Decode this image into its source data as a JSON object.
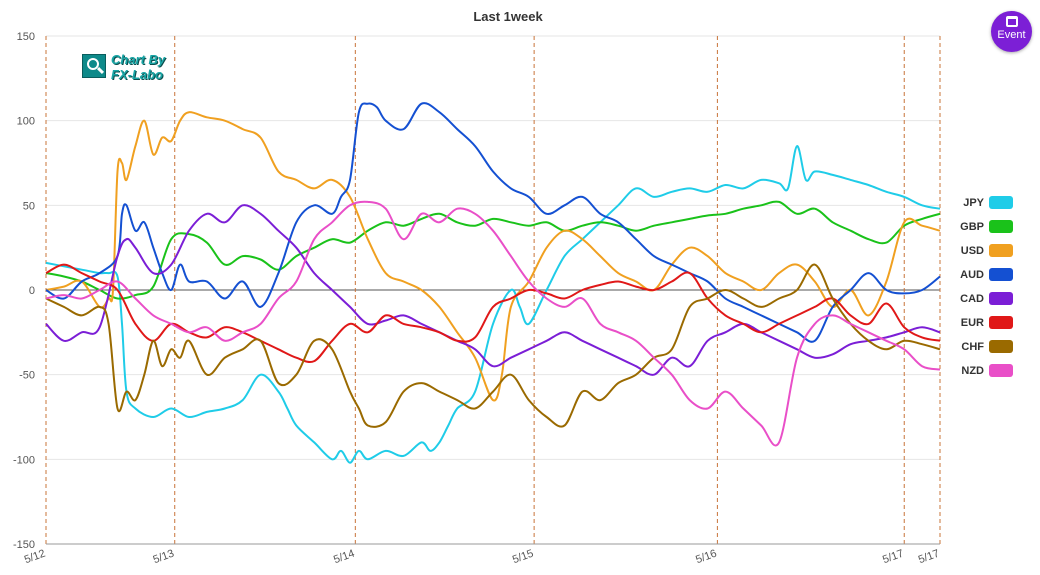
{
  "event_button": {
    "label": "Event",
    "icon": "calendar-icon",
    "color": "#7c1fd6"
  },
  "logo": {
    "line1": "Chart By",
    "line2": "FX-Labo"
  },
  "chart_data": {
    "type": "line",
    "title": "Last 1week",
    "xlabel": "",
    "ylabel": "",
    "ylim": [
      -150,
      150
    ],
    "yticks": [
      150,
      100,
      50,
      0,
      -50,
      -100,
      -150
    ],
    "xlim": [
      0,
      100
    ],
    "xticks": [
      {
        "x": 0,
        "label": "5/12"
      },
      {
        "x": 14.4,
        "label": "5/13"
      },
      {
        "x": 34.6,
        "label": "5/14"
      },
      {
        "x": 54.6,
        "label": "5/15"
      },
      {
        "x": 75.1,
        "label": "5/16"
      },
      {
        "x": 96.0,
        "label": "5/17"
      },
      {
        "x": 100,
        "label": "5/17"
      }
    ],
    "vlines": [
      0,
      14.4,
      34.6,
      54.6,
      75.1,
      96.0,
      100
    ],
    "grid": true,
    "legend_position": "right",
    "series": [
      {
        "name": "JPY",
        "color": "#1fcce8",
        "x": [
          0,
          2,
          4,
          6,
          7,
          8,
          8.5,
          9,
          10,
          12,
          14,
          16,
          18,
          20,
          22,
          24,
          26,
          27,
          28,
          30,
          32,
          33,
          34,
          35,
          36,
          38,
          40,
          42,
          43,
          44,
          45,
          46,
          48,
          50,
          52,
          53,
          54,
          56,
          58,
          60,
          62,
          64,
          66,
          68,
          70,
          72,
          74,
          76,
          78,
          80,
          82,
          83,
          84,
          85,
          86,
          88,
          90,
          92,
          94,
          96,
          98,
          100
        ],
        "y": [
          16,
          14,
          12,
          10,
          10,
          8,
          -20,
          -60,
          -70,
          -75,
          -70,
          -75,
          -72,
          -70,
          -65,
          -50,
          -60,
          -70,
          -80,
          -90,
          -100,
          -95,
          -102,
          -95,
          -100,
          -95,
          -98,
          -90,
          -95,
          -90,
          -80,
          -70,
          -60,
          -20,
          0,
          -10,
          -20,
          0,
          20,
          30,
          40,
          50,
          60,
          55,
          58,
          60,
          58,
          62,
          60,
          65,
          63,
          60,
          85,
          65,
          70,
          68,
          65,
          62,
          58,
          55,
          50,
          48
        ]
      },
      {
        "name": "GBP",
        "color": "#1ac21a",
        "x": [
          0,
          2,
          4,
          6,
          8,
          10,
          12,
          14,
          16,
          18,
          20,
          22,
          24,
          26,
          28,
          30,
          32,
          34,
          36,
          38,
          40,
          42,
          44,
          46,
          48,
          50,
          52,
          54,
          56,
          58,
          60,
          62,
          64,
          66,
          68,
          70,
          72,
          74,
          76,
          78,
          80,
          82,
          84,
          86,
          88,
          90,
          92,
          94,
          96,
          98,
          100
        ],
        "y": [
          10,
          8,
          5,
          0,
          -5,
          -3,
          2,
          30,
          33,
          28,
          15,
          20,
          18,
          12,
          20,
          25,
          30,
          28,
          35,
          40,
          38,
          42,
          45,
          40,
          38,
          42,
          40,
          38,
          40,
          35,
          38,
          40,
          38,
          35,
          38,
          40,
          42,
          44,
          45,
          48,
          50,
          52,
          45,
          48,
          40,
          35,
          30,
          28,
          38,
          42,
          45
        ]
      },
      {
        "name": "USD",
        "color": "#f0a020",
        "x": [
          0,
          2,
          4,
          6,
          7,
          7.5,
          8,
          8.5,
          9,
          10,
          11,
          12,
          13,
          14,
          15,
          16,
          18,
          20,
          22,
          24,
          26,
          28,
          30,
          32,
          34,
          36,
          38,
          40,
          42,
          44,
          46,
          48,
          50,
          51,
          52,
          54,
          56,
          58,
          60,
          62,
          64,
          66,
          68,
          70,
          72,
          74,
          76,
          78,
          80,
          82,
          84,
          86,
          88,
          90,
          92,
          94,
          96,
          98,
          100
        ],
        "y": [
          0,
          2,
          5,
          -10,
          -5,
          0,
          70,
          75,
          65,
          85,
          100,
          80,
          90,
          88,
          100,
          105,
          102,
          100,
          95,
          90,
          70,
          65,
          60,
          65,
          55,
          30,
          10,
          5,
          0,
          -10,
          -25,
          -40,
          -65,
          -50,
          -10,
          5,
          25,
          35,
          30,
          20,
          10,
          5,
          0,
          15,
          25,
          20,
          10,
          5,
          0,
          10,
          15,
          5,
          -10,
          0,
          -15,
          5,
          40,
          38,
          35
        ]
      },
      {
        "name": "AUD",
        "color": "#1450d2",
        "x": [
          0,
          2,
          4,
          6,
          8,
          8.5,
          9,
          10,
          11,
          12,
          13,
          14,
          15,
          16,
          18,
          20,
          22,
          24,
          26,
          28,
          30,
          32,
          33,
          34,
          35,
          36,
          37,
          38,
          40,
          42,
          44,
          46,
          48,
          50,
          52,
          54,
          56,
          58,
          60,
          62,
          64,
          66,
          68,
          70,
          72,
          74,
          76,
          78,
          80,
          82,
          84,
          86,
          88,
          90,
          92,
          94,
          96,
          98,
          100
        ],
        "y": [
          0,
          -5,
          5,
          10,
          20,
          45,
          50,
          35,
          40,
          25,
          10,
          0,
          15,
          5,
          5,
          -5,
          5,
          -10,
          10,
          40,
          50,
          45,
          55,
          65,
          105,
          110,
          108,
          100,
          95,
          110,
          105,
          95,
          85,
          70,
          60,
          55,
          45,
          50,
          55,
          45,
          40,
          30,
          20,
          15,
          10,
          5,
          -5,
          -10,
          -15,
          -20,
          -25,
          -30,
          -10,
          0,
          10,
          0,
          -2,
          0,
          8
        ]
      },
      {
        "name": "CAD",
        "color": "#7b1ed6",
        "x": [
          0,
          2,
          4,
          6,
          8,
          9,
          10,
          12,
          14,
          16,
          18,
          20,
          22,
          24,
          26,
          28,
          30,
          32,
          34,
          36,
          38,
          40,
          42,
          44,
          46,
          48,
          50,
          52,
          54,
          56,
          58,
          60,
          62,
          64,
          66,
          68,
          70,
          72,
          74,
          76,
          78,
          80,
          82,
          84,
          86,
          88,
          90,
          92,
          94,
          96,
          98,
          100
        ],
        "y": [
          -20,
          -30,
          -25,
          -22,
          20,
          30,
          25,
          10,
          15,
          35,
          45,
          40,
          50,
          45,
          35,
          25,
          10,
          0,
          -10,
          -20,
          -18,
          -15,
          -20,
          -25,
          -30,
          -35,
          -45,
          -40,
          -35,
          -30,
          -25,
          -30,
          -35,
          -40,
          -45,
          -50,
          -40,
          -45,
          -30,
          -25,
          -20,
          -25,
          -30,
          -35,
          -40,
          -38,
          -32,
          -30,
          -28,
          -25,
          -22,
          -25
        ]
      },
      {
        "name": "EUR",
        "color": "#e01818",
        "x": [
          0,
          2,
          4,
          6,
          8,
          10,
          12,
          14,
          16,
          18,
          20,
          22,
          24,
          26,
          28,
          30,
          32,
          34,
          36,
          38,
          40,
          42,
          44,
          46,
          48,
          50,
          52,
          54,
          56,
          58,
          60,
          62,
          64,
          66,
          68,
          70,
          72,
          74,
          76,
          78,
          80,
          82,
          84,
          86,
          88,
          90,
          92,
          94,
          96,
          98,
          100
        ],
        "y": [
          10,
          15,
          10,
          5,
          0,
          -20,
          -30,
          -20,
          -25,
          -28,
          -22,
          -25,
          -30,
          -35,
          -40,
          -42,
          -30,
          -20,
          -25,
          -15,
          -20,
          -22,
          -25,
          -30,
          -28,
          -10,
          -5,
          0,
          -2,
          -5,
          0,
          3,
          5,
          2,
          0,
          5,
          10,
          -5,
          -15,
          -20,
          -25,
          -20,
          -15,
          -10,
          -5,
          -15,
          -20,
          -8,
          -22,
          -28,
          -30
        ]
      },
      {
        "name": "CHF",
        "color": "#9a6a00",
        "x": [
          0,
          2,
          4,
          6,
          7,
          8,
          9,
          10,
          11,
          12,
          13,
          14,
          15,
          16,
          18,
          20,
          22,
          24,
          26,
          28,
          30,
          32,
          34,
          35,
          36,
          38,
          40,
          42,
          44,
          46,
          48,
          50,
          52,
          54,
          56,
          58,
          60,
          62,
          64,
          66,
          68,
          70,
          72,
          74,
          76,
          78,
          80,
          82,
          84,
          86,
          88,
          90,
          92,
          94,
          96,
          98,
          100
        ],
        "y": [
          -5,
          -10,
          -15,
          -10,
          -20,
          -70,
          -60,
          -65,
          -50,
          -30,
          -45,
          -35,
          -40,
          -30,
          -50,
          -40,
          -35,
          -30,
          -55,
          -50,
          -30,
          -35,
          -60,
          -70,
          -80,
          -78,
          -60,
          -55,
          -60,
          -65,
          -70,
          -60,
          -50,
          -65,
          -75,
          -80,
          -60,
          -65,
          -55,
          -50,
          -40,
          -35,
          -10,
          -5,
          0,
          -5,
          -10,
          -5,
          0,
          15,
          -5,
          -20,
          -30,
          -35,
          -30,
          -32,
          -35
        ]
      },
      {
        "name": "NZD",
        "color": "#e94fc8",
        "x": [
          0,
          2,
          4,
          6,
          8,
          10,
          12,
          14,
          16,
          18,
          20,
          22,
          24,
          26,
          28,
          30,
          32,
          34,
          36,
          38,
          40,
          42,
          44,
          46,
          48,
          50,
          52,
          54,
          56,
          58,
          60,
          62,
          64,
          66,
          68,
          70,
          72,
          74,
          76,
          78,
          80,
          82,
          84,
          86,
          88,
          90,
          92,
          94,
          96,
          98,
          100
        ],
        "y": [
          -5,
          -3,
          -5,
          0,
          5,
          -5,
          -15,
          -20,
          -25,
          -22,
          -30,
          -25,
          -20,
          -5,
          5,
          30,
          40,
          50,
          52,
          48,
          30,
          45,
          40,
          48,
          45,
          35,
          20,
          5,
          -5,
          -10,
          -5,
          -20,
          -25,
          -30,
          -40,
          -50,
          -65,
          -70,
          -60,
          -70,
          -80,
          -90,
          -40,
          -20,
          -15,
          -20,
          -25,
          -30,
          -35,
          -45,
          -47
        ]
      }
    ]
  }
}
